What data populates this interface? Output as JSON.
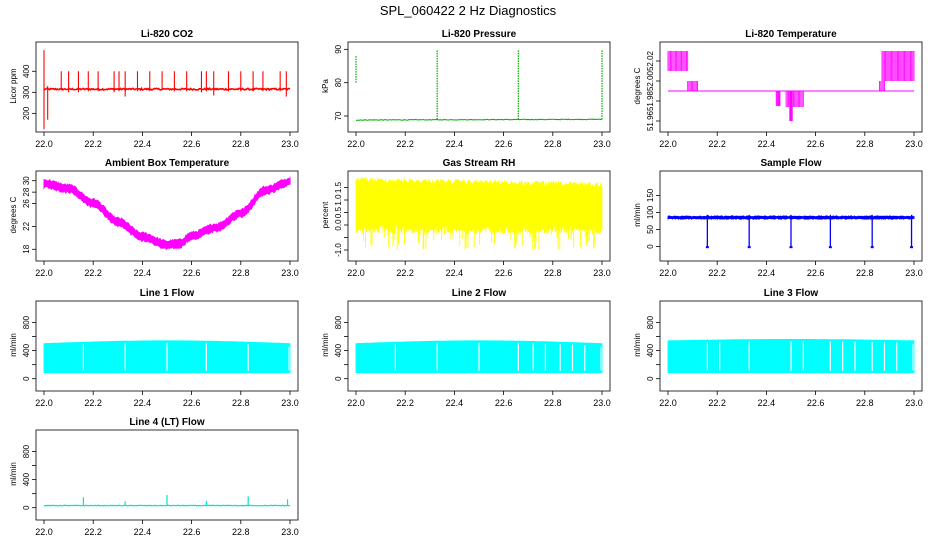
{
  "page": {
    "title": "SPL_060422  2 Hz Diagnostics"
  },
  "chart_data": [
    {
      "type": "line",
      "title": "Li-820 CO2",
      "ylabel": "Licor ppm",
      "color": "#ff0000",
      "xlim": [
        22.0,
        23.0
      ],
      "ylim": [
        140,
        520
      ],
      "yticks": [
        200,
        300,
        400
      ],
      "ytick_labels": [
        "200",
        "300",
        "400"
      ],
      "pattern": "co2",
      "base": 315,
      "noise": 8,
      "spikes": [
        [
          22.0,
          125,
          500
        ],
        [
          22.015,
          330,
          170
        ],
        [
          22.07,
          310,
          400
        ],
        [
          22.1,
          300,
          400
        ],
        [
          22.14,
          300,
          400
        ],
        [
          22.18,
          305,
          400
        ],
        [
          22.22,
          305,
          400
        ],
        [
          22.285,
          300,
          400
        ],
        [
          22.305,
          305,
          400
        ],
        [
          22.33,
          280,
          400
        ],
        [
          22.38,
          305,
          400
        ],
        [
          22.43,
          305,
          400
        ],
        [
          22.48,
          310,
          400
        ],
        [
          22.53,
          305,
          400
        ],
        [
          22.58,
          305,
          400
        ],
        [
          22.64,
          300,
          400
        ],
        [
          22.66,
          305,
          400
        ],
        [
          22.69,
          285,
          400
        ],
        [
          22.75,
          305,
          400
        ],
        [
          22.8,
          305,
          400
        ],
        [
          22.85,
          305,
          400
        ],
        [
          22.89,
          305,
          400
        ],
        [
          22.96,
          305,
          400
        ],
        [
          22.985,
          280,
          400
        ]
      ]
    },
    {
      "type": "line",
      "title": "Li-820 Pressure",
      "ylabel": "kPa",
      "color": "#00aa00",
      "xlim": [
        22.0,
        23.0
      ],
      "ylim": [
        67,
        91
      ],
      "yticks": [
        70,
        80,
        90
      ],
      "ytick_labels": [
        "70",
        "80",
        "90"
      ],
      "pattern": "pressure",
      "base_start": 68.8,
      "base_end": 69.0,
      "spikes": [
        [
          22.0,
          80,
          88
        ],
        [
          22.33,
          69,
          90
        ],
        [
          22.66,
          69,
          90
        ],
        [
          23.0,
          69,
          90
        ]
      ]
    },
    {
      "type": "line",
      "title": "Li-820 Temperature",
      "ylabel": "degrees C",
      "color": "#ff00ff",
      "xlim": [
        22.0,
        23.0
      ],
      "ylim": [
        51.955,
        52.035
      ],
      "yticks": [
        51.96,
        51.98,
        52.0,
        52.02
      ],
      "ytick_labels": [
        "51.96",
        "51.98",
        "52.00",
        "52.02"
      ],
      "pattern": "temperature",
      "flat": 51.99,
      "high": 52.03,
      "blocks": [
        [
          22.0,
          22.08,
          52.03,
          52.01
        ],
        [
          22.08,
          22.12,
          52.0,
          51.99
        ],
        [
          22.44,
          22.455,
          51.99,
          51.975
        ],
        [
          22.48,
          22.55,
          51.99,
          51.974
        ],
        [
          22.495,
          22.505,
          51.99,
          51.96
        ],
        [
          22.86,
          22.88,
          52.0,
          51.99
        ],
        [
          22.87,
          23.0,
          52.03,
          52.0
        ]
      ]
    },
    {
      "type": "line",
      "title": "Ambient Box Temperature",
      "ylabel": "degrees C",
      "color": "#ff00ff",
      "xlim": [
        22.0,
        23.0
      ],
      "ylim": [
        17,
        31
      ],
      "yticks": [
        18,
        22,
        26,
        28,
        30
      ],
      "ytick_labels": [
        "18",
        "22",
        "26",
        "28",
        "30"
      ],
      "pattern": "curve",
      "curve_x": [
        22.0,
        22.1,
        22.2,
        22.3,
        22.4,
        22.5,
        22.55,
        22.6,
        22.7,
        22.8,
        22.9,
        23.0
      ],
      "curve_y": [
        29.5,
        28.6,
        26.1,
        22.8,
        20.2,
        18.8,
        19.0,
        20.3,
        21.8,
        24.3,
        28.3,
        29.8
      ],
      "band": 0.7
    },
    {
      "type": "line",
      "title": "Gas Stream RH",
      "ylabel": "percent",
      "color": "#ffff00",
      "xlim": [
        22.0,
        23.0
      ],
      "ylim": [
        -1.2,
        2.0
      ],
      "yticks": [
        -1.0,
        -0.5,
        0.0,
        0.5,
        1.0,
        1.5
      ],
      "ytick_labels": [
        "-1.0",
        "0.0",
        "0.5",
        "1.0",
        "1.5"
      ],
      "pattern": "rh",
      "upper_start": 1.9,
      "upper_end": 1.7,
      "lower": 0.0,
      "min": -1.0
    },
    {
      "type": "line",
      "title": "Sample Flow",
      "ylabel": "ml/min",
      "color": "#0000ff",
      "xlim": [
        22.0,
        23.0
      ],
      "ylim": [
        -25,
        210
      ],
      "yticks": [
        0,
        50,
        100,
        150
      ],
      "ytick_labels": [
        "0",
        "50",
        "100",
        "150"
      ],
      "pattern": "sample",
      "base": 85,
      "noise": 5,
      "dips": [
        22.16,
        22.33,
        22.5,
        22.66,
        22.83,
        22.99
      ]
    },
    {
      "type": "area",
      "title": "Line 1 Flow",
      "ylabel": "ml/min",
      "color": "#00ffff",
      "xlim": [
        22.0,
        23.0
      ],
      "ylim": [
        -90,
        1050
      ],
      "yticks": [
        0,
        200,
        400,
        600,
        800
      ],
      "ytick_labels": [
        "0",
        "400",
        "800"
      ],
      "pattern": "band",
      "lower": 85,
      "upper": 500,
      "peak_upper": 540,
      "gaps": [
        22.16,
        22.33,
        22.5,
        22.66,
        22.83
      ]
    },
    {
      "type": "area",
      "title": "Line 2 Flow",
      "ylabel": "ml/min",
      "color": "#00ffff",
      "xlim": [
        22.0,
        23.0
      ],
      "ylim": [
        -90,
        1050
      ],
      "yticks": [
        0,
        200,
        400,
        600,
        800
      ],
      "ytick_labels": [
        "0",
        "400",
        "800"
      ],
      "pattern": "band",
      "lower": 85,
      "upper": 500,
      "peak_upper": 540,
      "gaps": [
        22.16,
        22.33,
        22.5,
        22.66,
        22.72,
        22.77,
        22.83,
        22.88,
        22.93
      ]
    },
    {
      "type": "area",
      "title": "Line 3 Flow",
      "ylabel": "ml/min",
      "color": "#00ffff",
      "xlim": [
        22.0,
        23.0
      ],
      "ylim": [
        -90,
        1050
      ],
      "yticks": [
        0,
        200,
        400,
        600,
        800
      ],
      "ytick_labels": [
        "0",
        "400",
        "800"
      ],
      "pattern": "band",
      "lower": 85,
      "upper": 540,
      "peak_upper": 560,
      "gaps": [
        22.16,
        22.21,
        22.33,
        22.5,
        22.55,
        22.66,
        22.71,
        22.76,
        22.83,
        22.88,
        22.93
      ]
    },
    {
      "type": "line",
      "title": "Line 4 (LT) Flow",
      "ylabel": "ml/min",
      "color": "#00e5cc",
      "xlim": [
        22.0,
        23.0
      ],
      "ylim": [
        -90,
        1050
      ],
      "yticks": [
        0,
        200,
        400,
        600,
        800
      ],
      "ytick_labels": [
        "0",
        "400",
        "800"
      ],
      "pattern": "spiky",
      "base": 30,
      "spikes": [
        [
          22.16,
          150
        ],
        [
          22.33,
          90
        ],
        [
          22.5,
          180
        ],
        [
          22.66,
          100
        ],
        [
          22.83,
          160
        ],
        [
          22.99,
          120
        ]
      ]
    }
  ],
  "x_ticks": [
    22.0,
    22.2,
    22.4,
    22.6,
    22.8,
    23.0
  ],
  "x_tick_labels": [
    "22.0",
    "22.2",
    "22.4",
    "22.6",
    "22.8",
    "23.0"
  ]
}
